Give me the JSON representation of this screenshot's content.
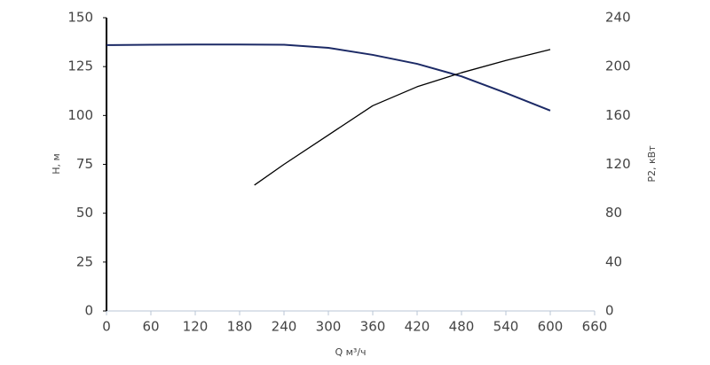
{
  "chart_data": {
    "type": "line",
    "xlabel": "Q м³/ч",
    "ylabel": "H, м",
    "y2label": "P2, кВт",
    "xlim": [
      0,
      660
    ],
    "xticks": [
      0,
      60,
      120,
      180,
      240,
      300,
      360,
      420,
      480,
      540,
      600,
      660
    ],
    "ylim": [
      0,
      150
    ],
    "yticks": [
      0,
      25,
      50,
      75,
      100,
      125,
      150
    ],
    "y2lim": [
      0,
      240
    ],
    "y2ticks": [
      0,
      40,
      80,
      120,
      160,
      200,
      240
    ],
    "grid": false,
    "series": [
      {
        "name": "H",
        "color": "#1c2a66",
        "x": [
          0,
          60,
          120,
          180,
          240,
          300,
          360,
          420,
          480,
          540,
          600
        ],
        "values": [
          136,
          136.2,
          136.3,
          136.3,
          136.2,
          134.6,
          131,
          126.4,
          120,
          111.5,
          102.5
        ]
      },
      {
        "name": "P2",
        "color": "#000000",
        "axis": "y2",
        "x": [
          200,
          240,
          300,
          360,
          420,
          480,
          540,
          600
        ],
        "values": [
          103,
          120,
          144,
          168,
          183.5,
          195,
          205,
          214
        ]
      }
    ]
  }
}
